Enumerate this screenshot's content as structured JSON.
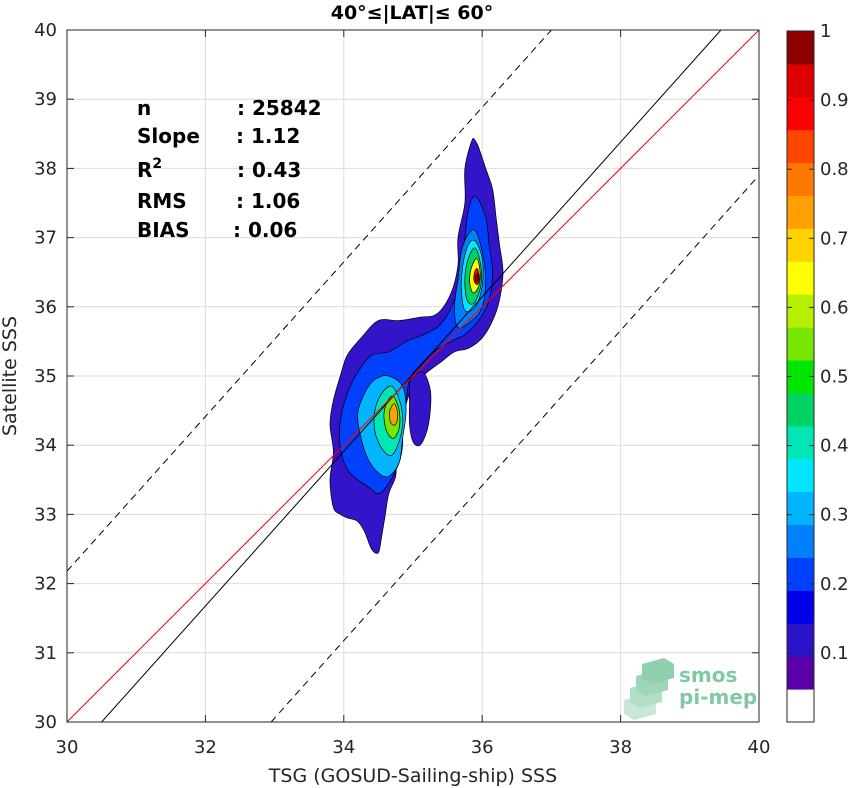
{
  "chart_data": {
    "type": "contour-density-scatter",
    "title": "40°≤|LAT|≤ 60°",
    "xlabel": "TSG (GOSUD-Sailing-ship) SSS",
    "ylabel": "Satellite SSS",
    "xlim": [
      30,
      40
    ],
    "ylim": [
      30,
      40
    ],
    "xticks": [
      "30",
      "32",
      "34",
      "36",
      "38",
      "40"
    ],
    "yticks": [
      "30",
      "31",
      "32",
      "33",
      "34",
      "35",
      "36",
      "37",
      "38",
      "39",
      "40"
    ],
    "grid": true,
    "stats": [
      {
        "label": "n",
        "value": ": 25842"
      },
      {
        "label": "Slope",
        "value": ": 1.12"
      },
      {
        "label": "R",
        "sup": "2",
        "value": ": 0.43"
      },
      {
        "label": "RMS",
        "value": ": 1.06"
      },
      {
        "label": "BIAS",
        "value": ": 0.06"
      }
    ],
    "lines": {
      "one_to_one": {
        "color": "#ff0000",
        "from": [
          30,
          30
        ],
        "to": [
          40,
          40
        ]
      },
      "regression": {
        "color": "#000000",
        "from": [
          30.5,
          30
        ],
        "to": [
          39.45,
          40
        ]
      },
      "upper_dashed": {
        "color": "#000000",
        "from": [
          30,
          32.18
        ],
        "to": [
          37,
          40
        ]
      },
      "lower_dashed": {
        "color": "#000000",
        "from": [
          32.95,
          30
        ],
        "to": [
          40,
          37.9
        ]
      }
    },
    "density_peaks": [
      {
        "x": 35.93,
        "y": 36.42,
        "value": 0.95
      },
      {
        "x": 34.72,
        "y": 34.45,
        "value": 0.78
      }
    ],
    "colorbar": {
      "ticks": [
        "0.1",
        "0.2",
        "0.3",
        "0.4",
        "0.5",
        "0.6",
        "0.7",
        "0.8",
        "0.9",
        "1"
      ],
      "levels": [
        "#ffffff",
        "#5a00a8",
        "#2a14c8",
        "#0000e6",
        "#0040ff",
        "#0080ff",
        "#00b4ff",
        "#00e6ff",
        "#00e6b4",
        "#00d264",
        "#00e600",
        "#78e600",
        "#b4f000",
        "#ffff00",
        "#ffd200",
        "#ffa000",
        "#ff7800",
        "#ff4600",
        "#ff0000",
        "#dc0000",
        "#8c0000"
      ]
    },
    "contour_colors": [
      "#3414c8",
      "#0040ff",
      "#0080ff",
      "#00b4ff",
      "#00e6ff",
      "#00e6b4",
      "#00d264",
      "#78e600",
      "#ffff00",
      "#ffa000",
      "#ff0000",
      "#8c0000"
    ]
  },
  "logo": {
    "line1": "smos",
    "line2": "pi-mep"
  }
}
